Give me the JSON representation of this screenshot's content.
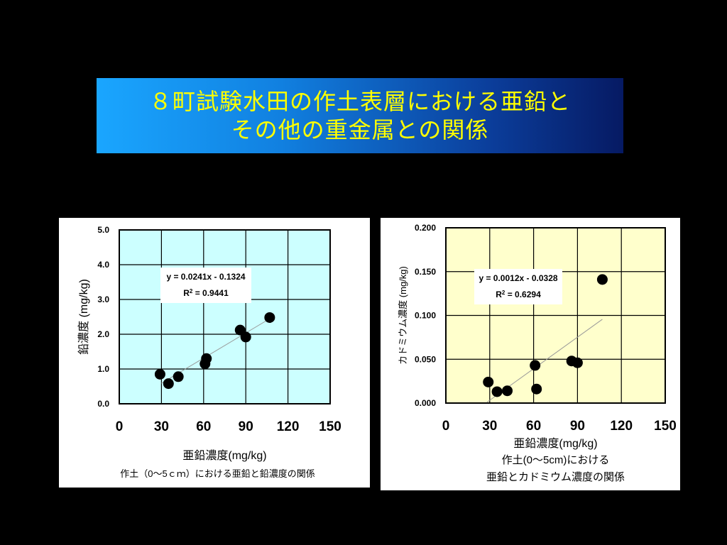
{
  "slide": {
    "title_line1": "８町試験水田の作土表層における亜鉛と",
    "title_line2": "その他の重金属との関係",
    "title_color": "#ffff00"
  },
  "chart_data": [
    {
      "type": "scatter",
      "xlabel": "亜鉛濃度(mg/kg)",
      "ylabel": "鉛濃度 (mg/kg)",
      "caption": "作土（0～5ｃｍ）における亜鉛と鉛濃度の関係",
      "xlim": [
        0,
        150
      ],
      "ylim": [
        0,
        5
      ],
      "x_ticks": [
        "0",
        "30",
        "60",
        "90",
        "120",
        "150"
      ],
      "y_ticks": [
        "0.0",
        "1.0",
        "2.0",
        "3.0",
        "4.0",
        "5.0"
      ],
      "plot_background": "#ccffff",
      "trendline": {
        "slope": 0.0241,
        "intercept": -0.1324,
        "x_range": [
          30,
          107
        ]
      },
      "equation": "y = 0.0241x - 0.1324",
      "r2_label": "R",
      "r2_sup": "2",
      "r2_value": " = 0.9441",
      "points": [
        {
          "x": 29,
          "y": 0.85
        },
        {
          "x": 35,
          "y": 0.58
        },
        {
          "x": 42,
          "y": 0.78
        },
        {
          "x": 61,
          "y": 1.15
        },
        {
          "x": 62,
          "y": 1.3
        },
        {
          "x": 86,
          "y": 2.12
        },
        {
          "x": 90,
          "y": 1.92
        },
        {
          "x": 107,
          "y": 2.48
        }
      ]
    },
    {
      "type": "scatter",
      "xlabel": "亜鉛濃度(mg/kg)",
      "ylabel": "カドミウム濃度 (mg/kg)",
      "caption_line1": "作土(0～5cm)における",
      "caption_line2": "亜鉛とカドミウム濃度の関係",
      "xlim": [
        0,
        150
      ],
      "ylim": [
        0,
        0.2
      ],
      "x_ticks": [
        "0",
        "30",
        "60",
        "90",
        "120",
        "150"
      ],
      "y_ticks": [
        "0.000",
        "0.050",
        "0.100",
        "0.150",
        "0.200"
      ],
      "plot_background": "#ffffcc",
      "trendline": {
        "slope": 0.0012,
        "intercept": -0.0328,
        "x_range": [
          28,
          107
        ]
      },
      "equation": "y = 0.0012x - 0.0328",
      "r2_label": "R",
      "r2_sup": "2",
      "r2_value": " = 0.6294",
      "points": [
        {
          "x": 29,
          "y": 0.024
        },
        {
          "x": 35,
          "y": 0.013
        },
        {
          "x": 42,
          "y": 0.014
        },
        {
          "x": 61,
          "y": 0.043
        },
        {
          "x": 62,
          "y": 0.016
        },
        {
          "x": 86,
          "y": 0.048
        },
        {
          "x": 90,
          "y": 0.046
        },
        {
          "x": 107,
          "y": 0.141
        }
      ]
    }
  ]
}
